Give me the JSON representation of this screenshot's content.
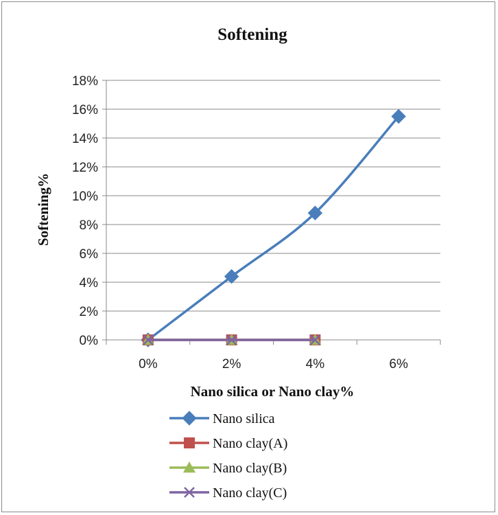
{
  "chart_data": {
    "type": "line",
    "title": "Softening",
    "xlabel": "Nano silica or Nano clay%",
    "ylabel": "Softening%",
    "categories": [
      "0%",
      "2%",
      "4%",
      "6%"
    ],
    "y_ticks": [
      "0%",
      "2%",
      "4%",
      "6%",
      "8%",
      "10%",
      "12%",
      "14%",
      "16%",
      "18%"
    ],
    "ylim": [
      0,
      18
    ],
    "grid": true,
    "legend_position": "bottom",
    "series": [
      {
        "name": "Nano silica",
        "values": [
          0,
          4.4,
          8.8,
          15.5
        ],
        "color": "#4a7ebb",
        "marker": "diamond"
      },
      {
        "name": "Nano clay(A)",
        "values": [
          0,
          0,
          0,
          null
        ],
        "color": "#c0504d",
        "marker": "square"
      },
      {
        "name": "Nano clay(B)",
        "values": [
          0,
          0,
          0,
          null
        ],
        "color": "#9bbb59",
        "marker": "triangle"
      },
      {
        "name": "Nano clay(C)",
        "values": [
          0,
          0,
          0,
          null
        ],
        "color": "#8064a2",
        "marker": "cross"
      }
    ]
  }
}
